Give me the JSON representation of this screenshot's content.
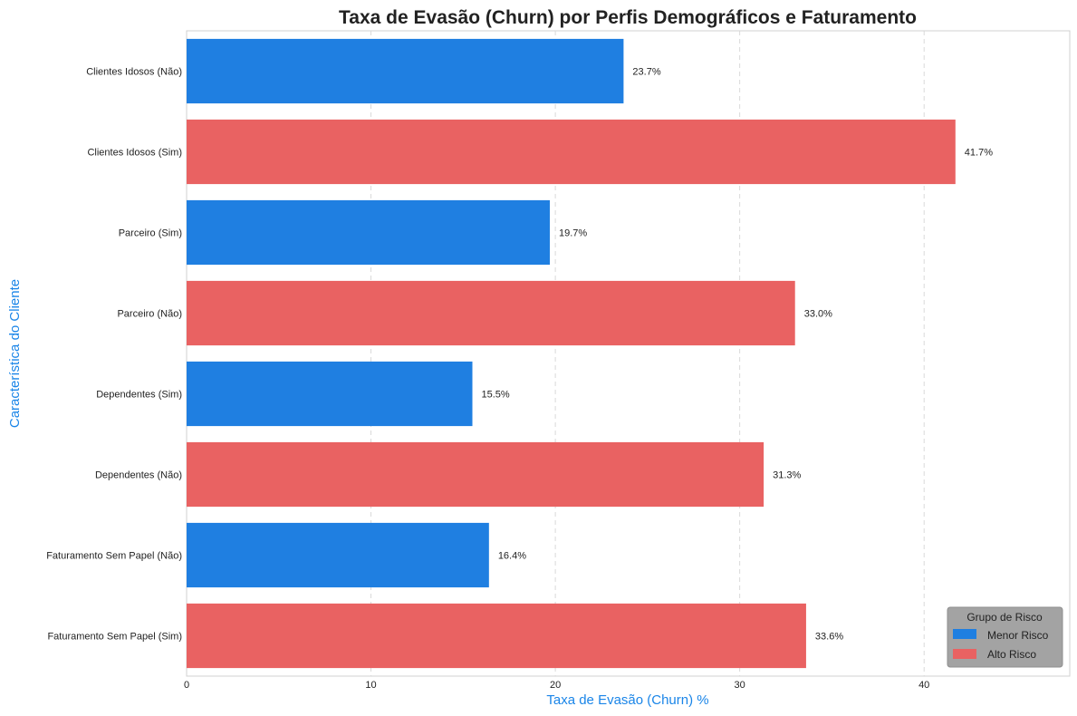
{
  "chart_data": {
    "type": "bar",
    "orientation": "horizontal",
    "title": "Taxa de Evasão (Churn) por Perfis Demográficos e Faturamento",
    "xlabel": "Taxa de Evasão (Churn) %",
    "ylabel": "Característica do Cliente",
    "xlim": [
      0,
      47.9
    ],
    "xticks": [
      0,
      10,
      20,
      30,
      40
    ],
    "grid": "vertical dashed",
    "categories": [
      "Clientes Idosos (Não)",
      "Clientes Idosos (Sim)",
      "Parceiro (Sim)",
      "Parceiro (Não)",
      "Dependentes (Sim)",
      "Dependentes (Não)",
      "Faturamento Sem Papel (Não)",
      "Faturamento Sem Papel (Sim)"
    ],
    "values": [
      23.7,
      41.7,
      19.7,
      33.0,
      15.5,
      31.3,
      16.4,
      33.6
    ],
    "value_labels": [
      "23.7%",
      "41.7%",
      "19.7%",
      "33.0%",
      "15.5%",
      "31.3%",
      "16.4%",
      "33.6%"
    ],
    "groups": [
      "Menor Risco",
      "Alto Risco",
      "Menor Risco",
      "Alto Risco",
      "Menor Risco",
      "Alto Risco",
      "Menor Risco",
      "Alto Risco"
    ],
    "legend": {
      "title": "Grupo de Risco",
      "placement": "lower-right",
      "entries": [
        {
          "name": "Menor Risco",
          "color": "#1f7fe1"
        },
        {
          "name": "Alto Risco",
          "color": "#e96262"
        }
      ]
    },
    "colors": {
      "Menor Risco": "#1f7fe1",
      "Alto Risco": "#e96262",
      "axis_label": "#1a85e8"
    }
  }
}
